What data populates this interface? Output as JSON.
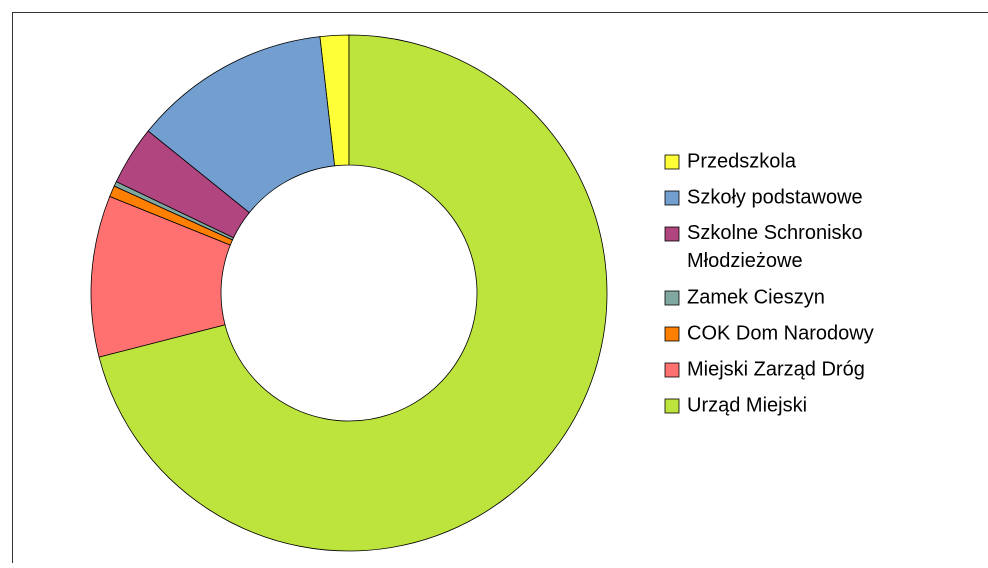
{
  "chart_data": {
    "type": "donut",
    "categories": [
      "Przedszkola",
      "Szkoły podstawowe",
      "Szkolne Schronisko Młodzieżowe",
      "Zamek Cieszyn",
      "COK Dom Narodowy",
      "Miejski Zarząd Dróg",
      "Urząd Miejski"
    ],
    "values": [
      1.8,
      12.4,
      3.7,
      0.3,
      0.7,
      10.1,
      71
    ],
    "colors": [
      "#ffff38",
      "#729fcf",
      "#b0457f",
      "#81a8a0",
      "#ff8000",
      "#ff7070",
      "#bde33d"
    ],
    "legend": "right"
  }
}
